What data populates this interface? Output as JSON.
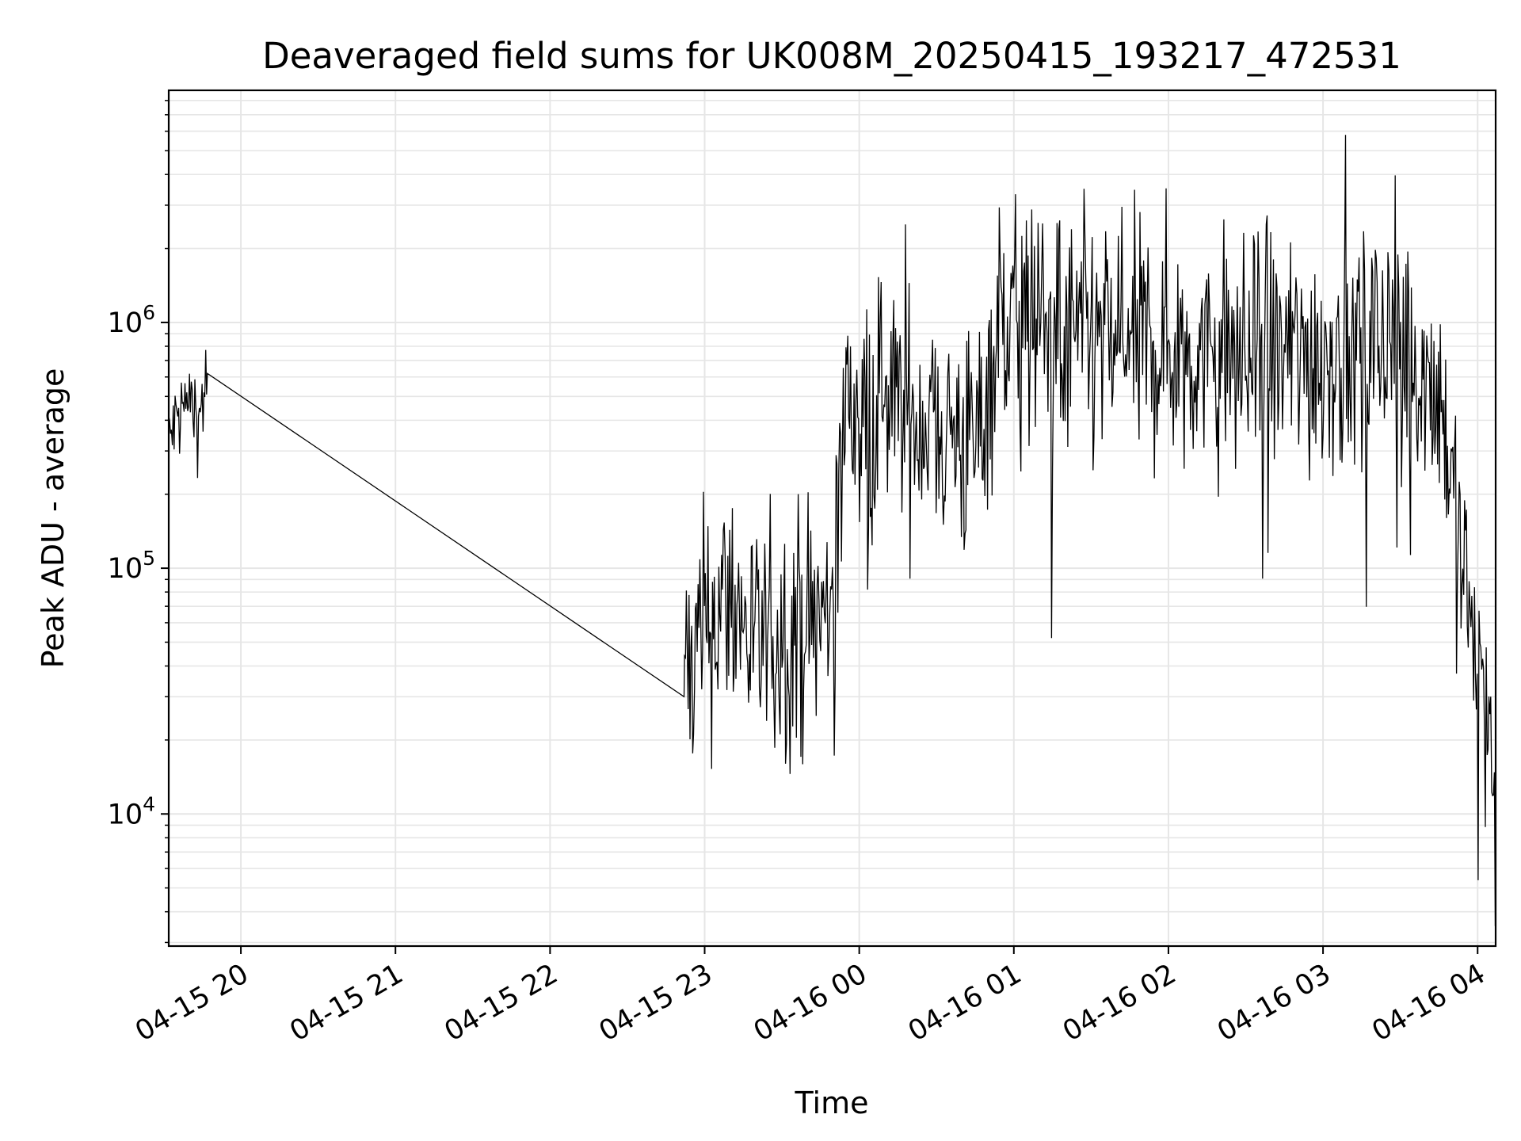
{
  "chart_data": {
    "type": "line",
    "title": "Deaveraged field sums for UK008M_20250415_193217_472531",
    "xlabel": "Time",
    "ylabel": "Peak ADU - average",
    "y_scale": "log",
    "ylim": [
      2900,
      8800000
    ],
    "xlim": [
      "2025-04-15 19:32",
      "2025-04-16 04:07"
    ],
    "grid": true,
    "line_color": "#000000",
    "grid_color": "#e6e6e6",
    "x_ticks": [
      {
        "value": "2025-04-15 20:00",
        "label": "04-15 20"
      },
      {
        "value": "2025-04-15 21:00",
        "label": "04-15 21"
      },
      {
        "value": "2025-04-15 22:00",
        "label": "04-15 22"
      },
      {
        "value": "2025-04-15 23:00",
        "label": "04-15 23"
      },
      {
        "value": "2025-04-16 00:00",
        "label": "04-16 00"
      },
      {
        "value": "2025-04-16 01:00",
        "label": "04-16 01"
      },
      {
        "value": "2025-04-16 02:00",
        "label": "04-16 02"
      },
      {
        "value": "2025-04-16 03:00",
        "label": "04-16 03"
      },
      {
        "value": "2025-04-16 04:00",
        "label": "04-16 04"
      }
    ],
    "y_ticks": [
      {
        "value": 10000,
        "base": "10",
        "exp": "4"
      },
      {
        "value": 100000,
        "base": "10",
        "exp": "5"
      },
      {
        "value": 1000000,
        "base": "10",
        "exp": "6"
      }
    ],
    "series": [
      {
        "x": [
          "2025-04-15 19:32",
          "2025-04-15 19:36",
          "2025-04-15 19:40",
          "2025-04-15 19:44",
          "2025-04-15 19:47",
          "2025-04-15 22:52",
          "2025-04-15 23:00",
          "2025-04-15 23:10",
          "2025-04-15 23:20",
          "2025-04-15 23:30",
          "2025-04-15 23:40",
          "2025-04-15 23:48",
          "2025-04-15 23:55",
          "2025-04-16 00:10",
          "2025-04-16 00:30",
          "2025-04-16 00:45",
          "2025-04-16 00:55",
          "2025-04-16 01:15",
          "2025-04-16 01:30",
          "2025-04-16 02:00",
          "2025-04-16 02:30",
          "2025-04-16 03:00",
          "2025-04-16 03:30",
          "2025-04-16 03:45",
          "2025-04-16 03:55",
          "2025-04-16 04:05",
          "2025-04-16 04:07"
        ],
        "values": [
          330000,
          420000,
          480000,
          410000,
          620000,
          30000,
          55000,
          80000,
          45000,
          55000,
          60000,
          65000,
          450000,
          450000,
          400000,
          300000,
          1100000,
          900000,
          800000,
          800000,
          700000,
          750000,
          850000,
          550000,
          90000,
          20000,
          4000
        ]
      }
    ]
  }
}
